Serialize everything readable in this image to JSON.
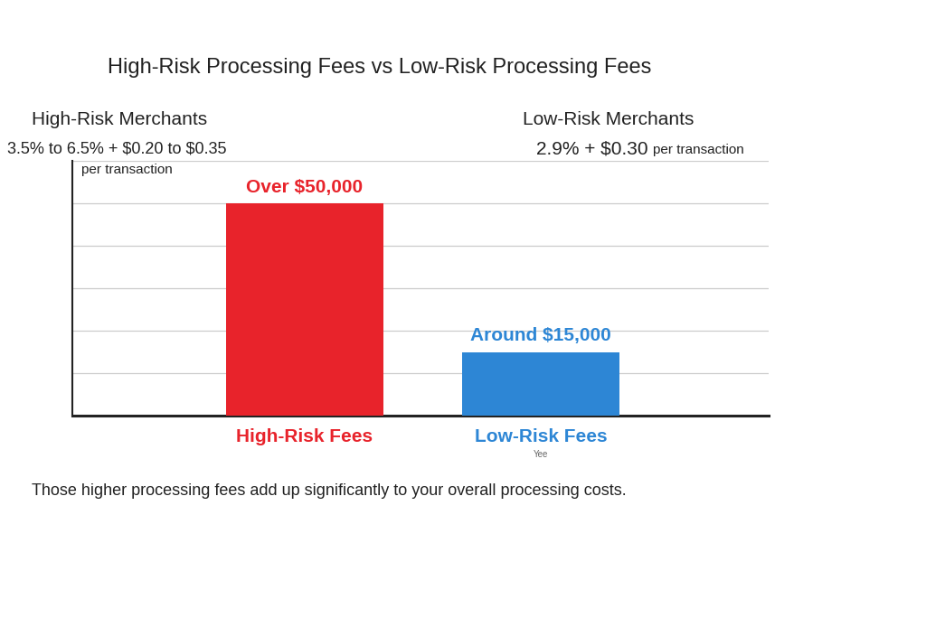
{
  "chart_data": {
    "type": "bar",
    "title": "High-Risk Processing Fees vs Low-Risk Processing Fees",
    "panels": [
      {
        "heading": "High-Risk Merchants",
        "rate": "3.5% to 6.5% + $0.20 to $0.35",
        "unit": "per transaction"
      },
      {
        "heading": "Low-Risk Merchants",
        "rate": "2.9% + $0.30",
        "unit": "per transaction"
      }
    ],
    "categories": [
      "High-Risk Fees",
      "Low-Risk Fees"
    ],
    "values": [
      50000,
      15000
    ],
    "value_labels": [
      "Over $50,000",
      "Around $15,000"
    ],
    "colors": [
      "#e8232b",
      "#2d86d5"
    ],
    "data_labels": true,
    "ylim": [
      0,
      60000
    ],
    "yticks": [
      0,
      10000,
      20000,
      30000,
      40000,
      50000,
      60000
    ],
    "grid": true,
    "tick_labels": "x",
    "notes": [
      "Yee"
    ],
    "footer": "Those higher processing fees add up significantly to your overall processing costs."
  }
}
